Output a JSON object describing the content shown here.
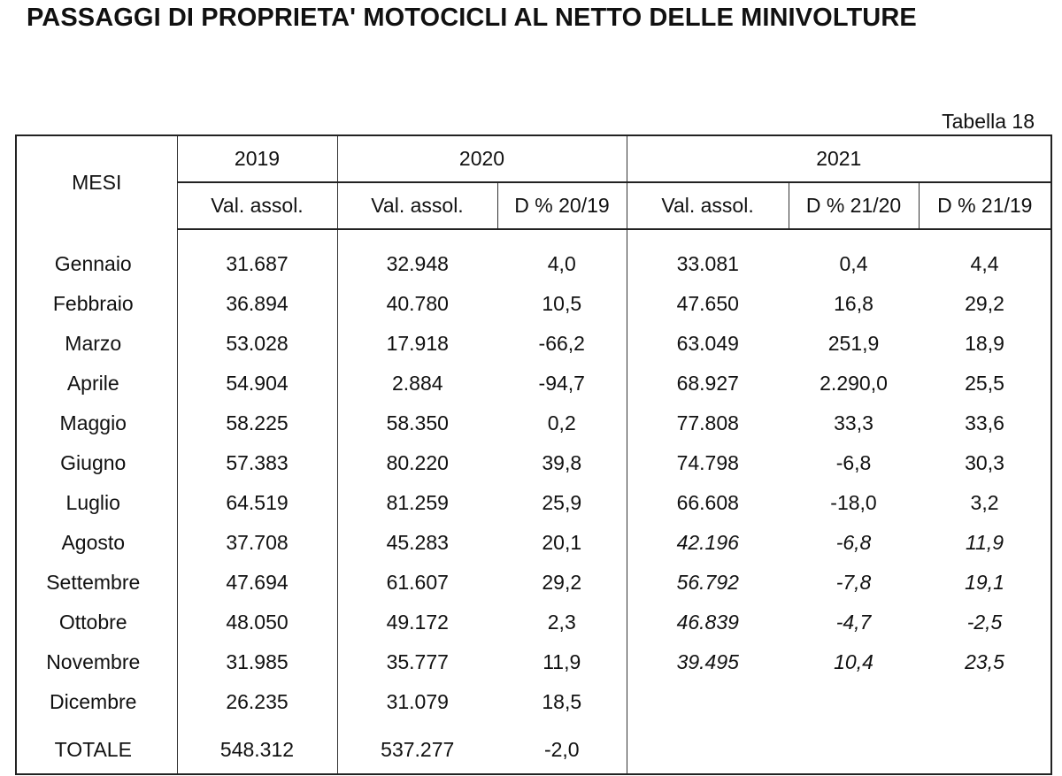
{
  "title": "PASSAGGI DI PROPRIETA' MOTOCICLI AL NETTO DELLE MINIVOLTURE",
  "table_label": "Tabella 18",
  "header": {
    "months_label": "MESI",
    "year_2019": "2019",
    "year_2020": "2020",
    "year_2021": "2021",
    "sub": [
      "Val. assol.",
      "Val. assol.",
      "D % 20/19",
      "Val. assol.",
      "D % 21/20",
      "D % 21/19"
    ]
  },
  "rows": [
    {
      "month": "Gennaio",
      "v2019": "31.687",
      "v2020": "32.948",
      "d2019_20": "4,0",
      "v2021": "33.081",
      "d2020_21": "0,4",
      "d2019_21": "4,4",
      "provisional": false
    },
    {
      "month": "Febbraio",
      "v2019": "36.894",
      "v2020": "40.780",
      "d2019_20": "10,5",
      "v2021": "47.650",
      "d2020_21": "16,8",
      "d2019_21": "29,2",
      "provisional": false
    },
    {
      "month": "Marzo",
      "v2019": "53.028",
      "v2020": "17.918",
      "d2019_20": "-66,2",
      "v2021": "63.049",
      "d2020_21": "251,9",
      "d2019_21": "18,9",
      "provisional": false
    },
    {
      "month": "Aprile",
      "v2019": "54.904",
      "v2020": "2.884",
      "d2019_20": "-94,7",
      "v2021": "68.927",
      "d2020_21": "2.290,0",
      "d2019_21": "25,5",
      "provisional": false
    },
    {
      "month": "Maggio",
      "v2019": "58.225",
      "v2020": "58.350",
      "d2019_20": "0,2",
      "v2021": "77.808",
      "d2020_21": "33,3",
      "d2019_21": "33,6",
      "provisional": false
    },
    {
      "month": "Giugno",
      "v2019": "57.383",
      "v2020": "80.220",
      "d2019_20": "39,8",
      "v2021": "74.798",
      "d2020_21": "-6,8",
      "d2019_21": "30,3",
      "provisional": false
    },
    {
      "month": "Luglio",
      "v2019": "64.519",
      "v2020": "81.259",
      "d2019_20": "25,9",
      "v2021": "66.608",
      "d2020_21": "-18,0",
      "d2019_21": "3,2",
      "provisional": false
    },
    {
      "month": "Agosto",
      "v2019": "37.708",
      "v2020": "45.283",
      "d2019_20": "20,1",
      "v2021": "42.196",
      "d2020_21": "-6,8",
      "d2019_21": "11,9",
      "provisional": true
    },
    {
      "month": "Settembre",
      "v2019": "47.694",
      "v2020": "61.607",
      "d2019_20": "29,2",
      "v2021": "56.792",
      "d2020_21": "-7,8",
      "d2019_21": "19,1",
      "provisional": true
    },
    {
      "month": "Ottobre",
      "v2019": "48.050",
      "v2020": "49.172",
      "d2019_20": "2,3",
      "v2021": "46.839",
      "d2020_21": "-4,7",
      "d2019_21": "-2,5",
      "provisional": true
    },
    {
      "month": "Novembre",
      "v2019": "31.985",
      "v2020": "35.777",
      "d2019_20": "11,9",
      "v2021": "39.495",
      "d2020_21": "10,4",
      "d2019_21": "23,5",
      "provisional": true
    },
    {
      "month": "Dicembre",
      "v2019": "26.235",
      "v2020": "31.079",
      "d2019_20": "18,5",
      "v2021": "",
      "d2020_21": "",
      "d2019_21": "",
      "provisional": false
    }
  ],
  "total": {
    "month": "TOTALE",
    "v2019": "548.312",
    "v2020": "537.277",
    "d2019_20": "-2,0",
    "v2021": "",
    "d2020_21": "",
    "d2019_21": ""
  }
}
